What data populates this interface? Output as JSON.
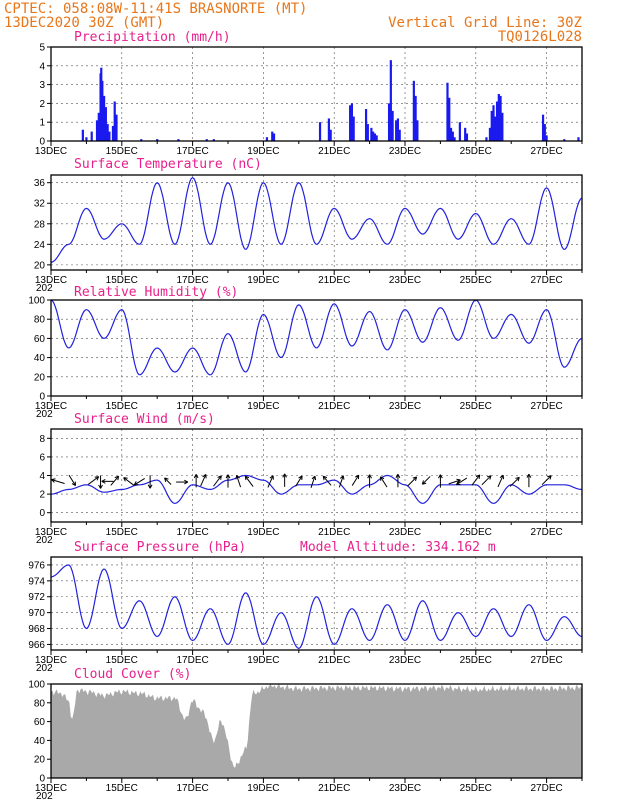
{
  "header": {
    "line1_left": "CPTEC:   058:08W-11:41S  BRASNORTE (MT)",
    "line2_left": "13DEC2020 30Z (GMT)",
    "line1_right": "Vertical Grid Line: 30Z",
    "line2_right": "TQ0126L028"
  },
  "colors": {
    "header": "#e8761a",
    "title": "#e8208c",
    "line": "#2222dd",
    "bar": "#1a1aee",
    "cloud": "#a9a9a9"
  },
  "date_labels": [
    "13DEC",
    "15DEC",
    "17DEC",
    "19DEC",
    "21DEC",
    "23DEC",
    "25DEC",
    "27DEC"
  ],
  "year_fragment": "202",
  "chart_data": [
    {
      "id": "precip",
      "type": "bar",
      "title": "Precipitation (mm/h)",
      "ylim": [
        0,
        5
      ],
      "yticks": [
        0,
        1,
        2,
        3,
        4,
        5
      ],
      "grid": true,
      "x_unit": "day offset from 13DEC",
      "points": [
        [
          0.9,
          0.6
        ],
        [
          1.0,
          0.2
        ],
        [
          1.15,
          0.5
        ],
        [
          1.3,
          1.1
        ],
        [
          1.35,
          1.5
        ],
        [
          1.4,
          3.6
        ],
        [
          1.42,
          3.9
        ],
        [
          1.45,
          3.2
        ],
        [
          1.5,
          2.4
        ],
        [
          1.55,
          1.8
        ],
        [
          1.6,
          0.9
        ],
        [
          1.65,
          0.5
        ],
        [
          1.75,
          0.8
        ],
        [
          1.8,
          2.1
        ],
        [
          1.85,
          1.4
        ],
        [
          2.55,
          0.1
        ],
        [
          3.0,
          0.1
        ],
        [
          3.6,
          0.1
        ],
        [
          4.4,
          0.1
        ],
        [
          4.6,
          0.1
        ],
        [
          6.1,
          0.2
        ],
        [
          6.25,
          0.5
        ],
        [
          6.3,
          0.4
        ],
        [
          7.6,
          1.0
        ],
        [
          7.85,
          1.2
        ],
        [
          7.9,
          0.6
        ],
        [
          8.45,
          1.9
        ],
        [
          8.5,
          2.0
        ],
        [
          8.55,
          1.3
        ],
        [
          8.9,
          1.7
        ],
        [
          8.95,
          0.9
        ],
        [
          9.05,
          0.7
        ],
        [
          9.1,
          0.5
        ],
        [
          9.15,
          0.4
        ],
        [
          9.2,
          0.3
        ],
        [
          9.55,
          2.0
        ],
        [
          9.6,
          4.3
        ],
        [
          9.65,
          1.6
        ],
        [
          9.75,
          1.1
        ],
        [
          9.8,
          1.2
        ],
        [
          9.85,
          0.6
        ],
        [
          10.25,
          3.2
        ],
        [
          10.3,
          2.4
        ],
        [
          10.35,
          1.1
        ],
        [
          11.2,
          3.1
        ],
        [
          11.25,
          2.3
        ],
        [
          11.3,
          0.7
        ],
        [
          11.35,
          0.5
        ],
        [
          11.4,
          0.2
        ],
        [
          11.55,
          1.0
        ],
        [
          11.7,
          0.7
        ],
        [
          11.75,
          0.4
        ],
        [
          12.3,
          0.2
        ],
        [
          12.4,
          0.7
        ],
        [
          12.45,
          1.6
        ],
        [
          12.5,
          1.9
        ],
        [
          12.55,
          1.3
        ],
        [
          12.6,
          2.1
        ],
        [
          12.65,
          2.5
        ],
        [
          12.7,
          2.4
        ],
        [
          12.75,
          1.5
        ],
        [
          13.9,
          1.4
        ],
        [
          13.95,
          0.9
        ],
        [
          14.0,
          0.3
        ],
        [
          14.5,
          0.1
        ],
        [
          14.9,
          0.2
        ]
      ]
    },
    {
      "id": "temp",
      "type": "line",
      "title": "Surface Temperature (nC)",
      "ylim": [
        19,
        37.5
      ],
      "yticks": [
        20,
        24,
        28,
        32,
        36
      ],
      "grid": true,
      "x_unit": "day offset from 13DEC",
      "x": [
        0,
        0.5,
        1,
        1.5,
        2,
        2.5,
        3,
        3.5,
        4,
        4.5,
        5,
        5.5,
        6,
        6.5,
        7,
        7.5,
        8,
        8.5,
        9,
        9.5,
        10,
        10.5,
        11,
        11.5,
        12,
        12.5,
        13,
        13.5,
        14,
        14.5,
        15
      ],
      "y": [
        20.5,
        24,
        31,
        25,
        28,
        24,
        36,
        24,
        37,
        24,
        36,
        23,
        36,
        24,
        36,
        24,
        31,
        25,
        29,
        24,
        31,
        26,
        31,
        25,
        30,
        24,
        29,
        24,
        35,
        23,
        33
      ]
    },
    {
      "id": "rh",
      "type": "line",
      "title": "Relative Humidity (%)",
      "ylim": [
        0,
        100
      ],
      "yticks": [
        0,
        20,
        40,
        60,
        80,
        100
      ],
      "grid": true,
      "x_unit": "day offset from 13DEC",
      "x": [
        0,
        0.5,
        1,
        1.5,
        2,
        2.5,
        3,
        3.5,
        4,
        4.5,
        5,
        5.5,
        6,
        6.5,
        7,
        7.5,
        8,
        8.5,
        9,
        9.5,
        10,
        10.5,
        11,
        11.5,
        12,
        12.5,
        13,
        13.5,
        14,
        14.5,
        15
      ],
      "y": [
        100,
        50,
        90,
        60,
        90,
        22,
        50,
        25,
        50,
        22,
        65,
        25,
        85,
        40,
        95,
        50,
        96,
        52,
        88,
        48,
        90,
        56,
        92,
        58,
        100,
        60,
        85,
        55,
        90,
        30,
        60
      ]
    },
    {
      "id": "wind",
      "type": "line",
      "title": "Surface Wind (m/s)",
      "ylim": [
        -1,
        9
      ],
      "yticks": [
        0,
        2,
        4,
        6,
        8
      ],
      "grid": true,
      "x_unit": "day offset from 13DEC",
      "x": [
        0,
        0.5,
        1,
        1.5,
        2,
        2.5,
        3,
        3.5,
        4,
        4.5,
        5,
        5.5,
        6,
        6.5,
        7,
        7.5,
        8,
        8.5,
        9,
        9.5,
        10,
        10.5,
        11,
        11.5,
        12,
        12.5,
        13,
        13.5,
        14,
        14.5,
        15
      ],
      "y": [
        2,
        2.5,
        3,
        2.2,
        2.5,
        3,
        3.5,
        1,
        3,
        2.5,
        3.5,
        4,
        3.5,
        2,
        3,
        3,
        3.5,
        2,
        3,
        4,
        3,
        1,
        3,
        3,
        3,
        1,
        3,
        2,
        3,
        3,
        2.5
      ],
      "arrows": [
        [
          0.2,
          -1,
          0.3
        ],
        [
          0.6,
          0.5,
          -0.8
        ],
        [
          1.2,
          0.8,
          0.6
        ],
        [
          1.4,
          0,
          -1
        ],
        [
          1.6,
          -0.9,
          0
        ],
        [
          1.8,
          0.6,
          0.7
        ],
        [
          2.2,
          -0.8,
          0.6
        ],
        [
          2.5,
          -0.8,
          -0.5
        ],
        [
          2.8,
          0,
          -1
        ],
        [
          3.3,
          -0.5,
          0.5
        ],
        [
          3.7,
          0.9,
          0
        ],
        [
          4.1,
          0,
          1
        ],
        [
          4.3,
          0.4,
          0.9
        ],
        [
          4.7,
          0.6,
          0.8
        ],
        [
          5.0,
          0,
          1
        ],
        [
          5.3,
          -0.3,
          0.9
        ],
        [
          5.6,
          -0.6,
          0.8
        ],
        [
          6.2,
          0.4,
          0.9
        ],
        [
          6.6,
          0,
          1
        ],
        [
          7.0,
          0.5,
          0.8
        ],
        [
          7.4,
          0.3,
          0.9
        ],
        [
          7.8,
          -0.6,
          0.7
        ],
        [
          8.2,
          0.3,
          0.9
        ],
        [
          8.6,
          0.5,
          0.8
        ],
        [
          9.0,
          0,
          1
        ],
        [
          9.4,
          -0.5,
          0.8
        ],
        [
          9.8,
          0,
          1
        ],
        [
          10.2,
          0.7,
          0.7
        ],
        [
          10.6,
          -0.6,
          -0.6
        ],
        [
          11.0,
          0,
          1
        ],
        [
          11.4,
          0.9,
          0.3
        ],
        [
          11.6,
          -0.8,
          -0.5
        ],
        [
          12.0,
          0.6,
          0.8
        ],
        [
          12.3,
          0.7,
          0.7
        ],
        [
          12.7,
          0.4,
          0.9
        ],
        [
          13.1,
          0.7,
          0.7
        ],
        [
          13.5,
          0,
          1
        ],
        [
          14.0,
          0.7,
          0.7
        ]
      ]
    },
    {
      "id": "press",
      "type": "line",
      "title": "Surface Pressure (hPa)",
      "annotation": "Model Altitude: 334.162 m",
      "ylim": [
        965.3,
        977
      ],
      "yticks": [
        966,
        968,
        970,
        972,
        974,
        976
      ],
      "grid": true,
      "x_unit": "day offset from 13DEC",
      "x": [
        0,
        0.5,
        1,
        1.5,
        2,
        2.5,
        3,
        3.5,
        4,
        4.5,
        5,
        5.5,
        6,
        6.5,
        7,
        7.5,
        8,
        8.5,
        9,
        9.5,
        10,
        10.5,
        11,
        11.5,
        12,
        12.5,
        13,
        13.5,
        14,
        14.5,
        15
      ],
      "y": [
        974.5,
        976,
        968,
        975.5,
        968,
        971.5,
        967,
        972,
        966.5,
        970.5,
        966,
        972.5,
        966,
        970,
        965.5,
        972,
        966,
        970.5,
        966.5,
        971,
        966.5,
        971.5,
        966.5,
        970,
        967,
        970.5,
        967,
        971,
        966.5,
        969.5,
        967
      ]
    },
    {
      "id": "cloud",
      "type": "area",
      "title": "Cloud Cover (%)",
      "ylim": [
        0,
        100
      ],
      "yticks": [
        0,
        20,
        40,
        60,
        80,
        100
      ],
      "grid": false,
      "x_unit": "day offset from 13DEC",
      "x": [
        0,
        0.3,
        0.5,
        0.6,
        0.75,
        1,
        1.5,
        2,
        2.5,
        3,
        3.5,
        3.8,
        4,
        4.3,
        4.6,
        4.8,
        5.2,
        5.5,
        5.7,
        6.2,
        7,
        8,
        9,
        10,
        11,
        12,
        13,
        14,
        15
      ],
      "y": [
        92,
        90,
        82,
        62,
        94,
        92,
        88,
        92,
        90,
        85,
        85,
        62,
        82,
        70,
        40,
        60,
        12,
        30,
        90,
        98,
        95,
        96,
        96,
        95,
        96,
        94,
        95,
        95,
        96
      ]
    }
  ]
}
